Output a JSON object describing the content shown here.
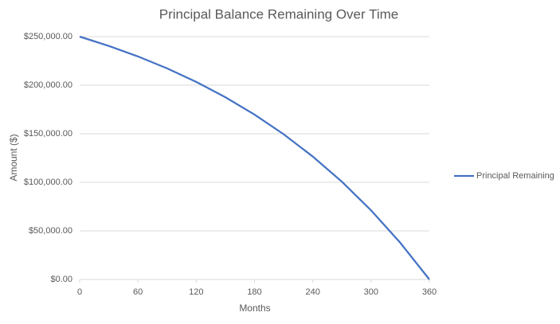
{
  "chart_data": {
    "type": "line",
    "title": "Principal Balance Remaining Over Time",
    "x_label": "Months",
    "y_label": "Amount ($)",
    "x": [
      0,
      30,
      60,
      90,
      120,
      150,
      180,
      210,
      240,
      270,
      300,
      330,
      360
    ],
    "series": [
      {
        "name": "Principal Remaining",
        "color": "#4472c4",
        "values": [
          250000,
          240400,
          229600,
          217300,
          203400,
          187600,
          169700,
          149500,
          126500,
          100600,
          71100,
          37800,
          0
        ]
      }
    ],
    "xlim": [
      0,
      360
    ],
    "xticks": [
      0,
      60,
      120,
      180,
      240,
      300,
      360
    ],
    "ylim": [
      0,
      250000
    ],
    "yticks": [
      {
        "value": 0,
        "label": "$0.00"
      },
      {
        "value": 50000,
        "label": "$50,000.00"
      },
      {
        "value": 100000,
        "label": "$100,000.00"
      },
      {
        "value": 150000,
        "label": "$150,000.00"
      },
      {
        "value": 200000,
        "label": "$200,000.00"
      },
      {
        "value": 250000,
        "label": "$250,000.00"
      }
    ],
    "grid": true,
    "legend": "right"
  }
}
